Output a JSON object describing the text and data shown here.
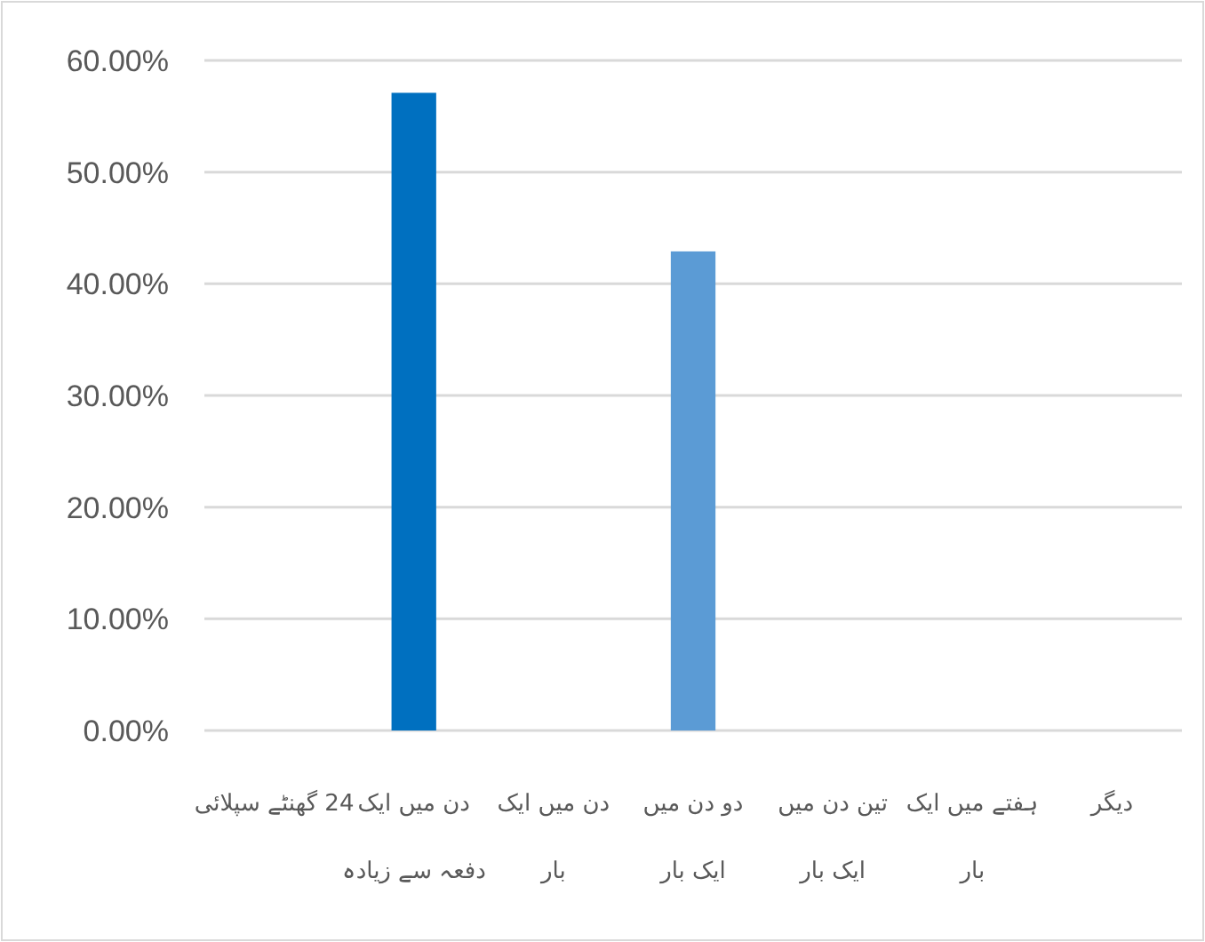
{
  "chart_data": {
    "type": "bar",
    "categories": [
      "24 گھنٹے سپلائی",
      "دن میں ایک\nدفعہ سے زیادہ",
      "دن میں ایک\nبار",
      "دو دن میں\nایک بار",
      "تین دن میں\nایک بار",
      "ہفتے میں ایک\nبار",
      "دیگر"
    ],
    "values": [
      0,
      57.1,
      0,
      42.9,
      0,
      0,
      0
    ],
    "colors": [
      "#0070c0",
      "#0070c0",
      "#0070c0",
      "#5b9bd5",
      "#0070c0",
      "#0070c0",
      "#0070c0"
    ],
    "ylim": [
      0,
      60
    ],
    "yticks": [
      {
        "value": 0,
        "label": "0.00%"
      },
      {
        "value": 10,
        "label": "10.00%"
      },
      {
        "value": 20,
        "label": "20.00%"
      },
      {
        "value": 30,
        "label": "30.00%"
      },
      {
        "value": 40,
        "label": "40.00%"
      },
      {
        "value": 50,
        "label": "50.00%"
      },
      {
        "value": 60,
        "label": "60.00%"
      }
    ],
    "grid": "y"
  }
}
